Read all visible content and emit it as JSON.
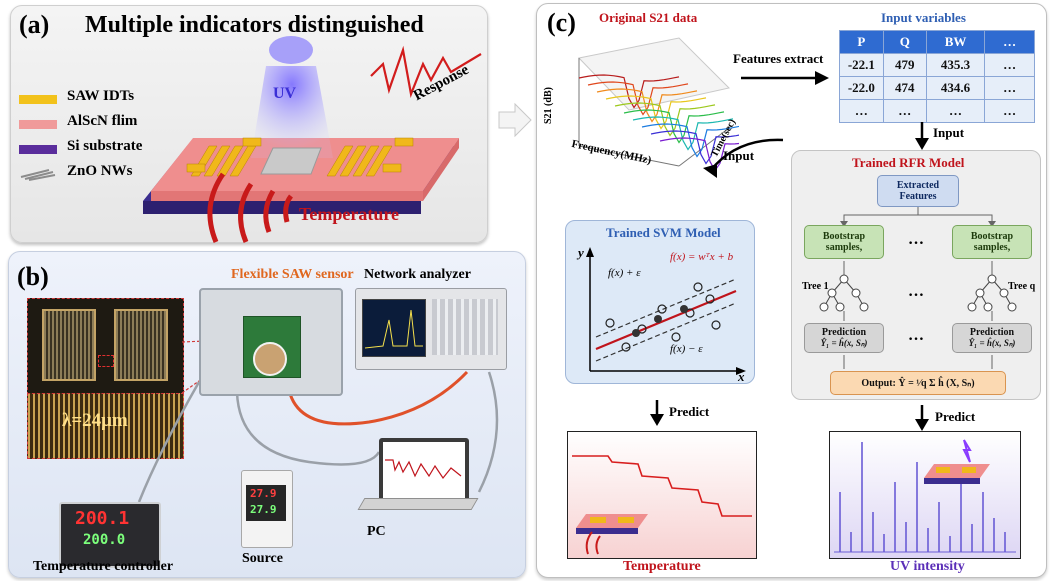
{
  "panel_a": {
    "label": "(a)",
    "title": "Multiple indicators distinguished",
    "uv_label": "UV",
    "response_label": "Response",
    "temperature_label": "Temperature",
    "legend": [
      {
        "label": "SAW IDTs",
        "color": "#f2c21b"
      },
      {
        "label": "AlScN flim",
        "color": "#f09a9a"
      },
      {
        "label": "Si substrate",
        "color": "#5a2d9c"
      },
      {
        "label": "ZnO NWs",
        "color": "#9a9a9a"
      }
    ]
  },
  "panel_b": {
    "label": "(b)",
    "sensor_title": "Flexible SAW sensor",
    "network_analyzer": "Network analyzer",
    "wavelength": "λ=24μm",
    "temperature_controller": "Temperature controller",
    "controller_top": "200.1",
    "controller_bottom": "200.0",
    "source_label": "Source",
    "source_top": "27.9",
    "source_bottom": "27.9",
    "pc_label": "PC"
  },
  "panel_c": {
    "label": "(c)",
    "s21_title": "Original S21 data",
    "s21_ylabel": "S21 (dB)",
    "s21_xlabel": "Frequency(MHz)",
    "s21_zlabel": "Time(sec)",
    "features_extract": "Features extract",
    "input_variables_title": "Input variables",
    "table_header": [
      "P",
      "Q",
      "BW",
      "…"
    ],
    "table_rows": [
      [
        "-22.1",
        "479",
        "435.3",
        "…"
      ],
      [
        "-22.0",
        "474",
        "434.6",
        "…"
      ],
      [
        "…",
        "…",
        "…",
        "…"
      ]
    ],
    "input_label_right": "Input",
    "input_label_left": "Input",
    "rfr_title": "Trained RFR  Model",
    "extracted_features": "Extracted Features",
    "bootstrap_label": "Bootstrap samples,",
    "bootstrap_math_1": "S",
    "bootstrap_math_q": "S",
    "ellipsis": "…",
    "tree_1": "Tree 1",
    "tree_q": "Tree q",
    "prediction_label": "Prediction",
    "prediction_formula": "Ŷ₁ = ĥ(x, Sₙ)",
    "output_formula": "Output: Ŷ = ¹⁄q Σ ĥ (X, Sₙ)",
    "svm_title": "Trained SVM  Model",
    "svm_y": "y",
    "svm_x": "x",
    "svm_f_main": "f(x) = wᵀx + b",
    "svm_f_plus": "f(x) + ε",
    "svm_f_minus": "f(x) − ε",
    "predict_left": "Predict",
    "predict_right": "Predict",
    "temperature_result": "Temperature",
    "uv_result": "UV intensity"
  }
}
